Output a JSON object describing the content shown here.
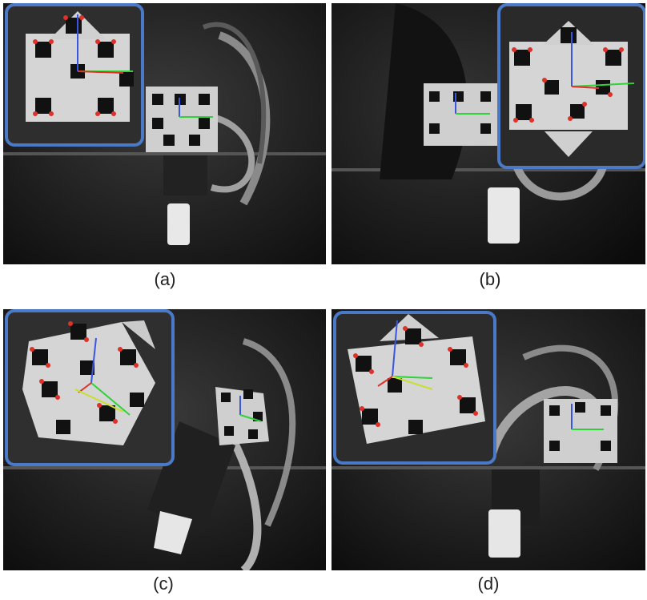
{
  "figure": {
    "panels": [
      {
        "id": "a",
        "caption": "(a)"
      },
      {
        "id": "b",
        "caption": "(b)"
      },
      {
        "id": "c",
        "caption": "(c)"
      },
      {
        "id": "d",
        "caption": "(d)"
      }
    ]
  },
  "colors": {
    "inset_border": "#4a7ac7",
    "corner_marker": "#e0302a",
    "axis_x": "#e0302a",
    "axis_y": "#2fd23a",
    "axis_z": "#3a56e0",
    "axis_alt": "#c8e02a"
  }
}
